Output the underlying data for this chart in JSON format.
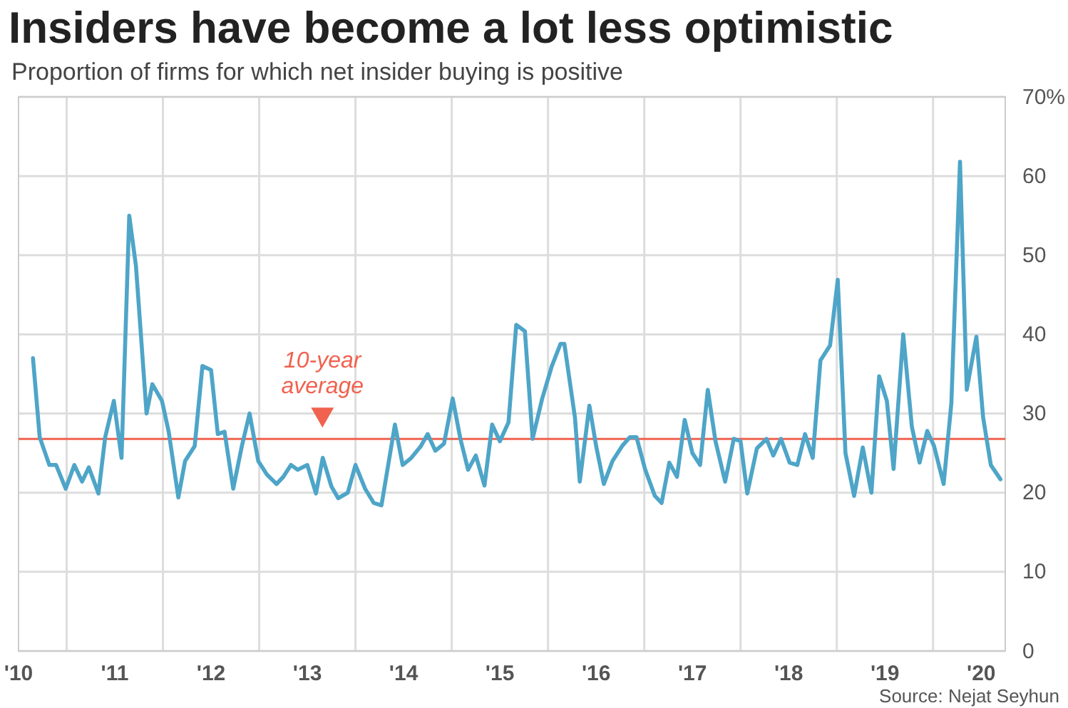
{
  "chart_data": {
    "type": "line",
    "title": "Insiders have become a lot less optimistic",
    "subtitle": "Proportion of firms for which net insider buying is positive",
    "x": [
      2010.15,
      2010.22,
      2010.32,
      2010.39,
      2010.49,
      2010.58,
      2010.66,
      2010.73,
      2010.83,
      2010.9,
      2010.99,
      2011.07,
      2011.15,
      2011.22,
      2011.33,
      2011.39,
      2011.49,
      2011.56,
      2011.66,
      2011.73,
      2011.83,
      2011.91,
      2012.0,
      2012.07,
      2012.14,
      2012.23,
      2012.32,
      2012.4,
      2012.49,
      2012.58,
      2012.68,
      2012.75,
      2012.83,
      2012.9,
      2013.0,
      2013.09,
      2013.16,
      2013.25,
      2013.32,
      2013.42,
      2013.5,
      2013.6,
      2013.69,
      2013.77,
      2013.91,
      2013.99,
      2014.08,
      2014.18,
      2014.25,
      2014.33,
      2014.42,
      2014.51,
      2014.59,
      2014.67,
      2014.75,
      2014.84,
      2014.92,
      2015.0,
      2015.09,
      2015.17,
      2015.26,
      2015.34,
      2015.44,
      2015.54,
      2015.63,
      2015.67,
      2015.78,
      2015.83,
      2015.93,
      2016.0,
      2016.08,
      2016.17,
      2016.27,
      2016.35,
      2016.42,
      2016.51,
      2016.61,
      2016.68,
      2016.76,
      2016.84,
      2016.92,
      2017.0,
      2017.08,
      2017.16,
      2017.24,
      2017.34,
      2017.43,
      2017.5,
      2017.57,
      2017.67,
      2017.77,
      2017.84,
      2017.92,
      2018.01,
      2018.09,
      2018.17,
      2018.25,
      2018.33,
      2018.43,
      2018.51,
      2018.59,
      2018.68,
      2018.77,
      2018.86,
      2018.94,
      2019.02,
      2019.09,
      2019.19,
      2019.28,
      2019.36,
      2019.44,
      2019.51,
      2019.61,
      2019.69,
      2019.78,
      2019.85,
      2019.95,
      2020.02,
      2020.1,
      2020.2
    ],
    "series": [
      {
        "color": "#4ea5c8",
        "values": [
          37,
          27,
          23.5,
          23.5,
          20.5,
          23.5,
          21.4,
          23.2,
          19.9,
          27,
          31.6,
          24.4,
          55,
          48.6,
          30,
          33.7,
          31.6,
          27.7,
          19.4,
          24,
          25.9,
          36,
          35.5,
          27.4,
          27.7,
          20.5,
          25.9,
          30,
          24,
          22.3,
          21.1,
          22,
          23.5,
          22.9,
          23.5,
          19.9,
          24.4,
          20.8,
          19.3,
          20,
          23.5,
          20.5,
          18.7,
          18.4,
          28.6,
          23.5,
          24.4,
          25.9,
          27.4,
          25.3,
          26.2,
          31.9,
          26.8,
          22.9,
          24.7,
          20.9,
          28.6,
          26.5,
          28.9,
          41.2,
          40.4,
          26.8,
          31.9,
          36,
          38.8,
          38.8,
          29.5,
          21.4,
          31,
          25.9,
          21.1,
          24,
          25.9,
          27,
          27,
          22.9,
          19.6,
          18.7,
          23.8,
          22,
          29.2,
          25,
          23.5,
          33,
          26.5,
          21.4,
          26.8,
          26.5,
          19.9,
          25.6,
          26.8,
          24.7,
          26.8,
          23.8,
          23.5,
          27.4,
          24.4,
          36.7,
          38.6,
          46.9,
          25,
          19.6,
          25.7,
          20,
          34.7,
          31.6,
          23,
          40,
          28.3,
          23.8,
          27.8,
          25.9,
          21.1,
          31.3,
          61.8,
          33,
          39.7,
          29.5,
          23.5,
          21.7
        ]
      }
    ],
    "xlim": [
      2010,
      2020.25
    ],
    "xticks": [
      {
        "value": 2010,
        "label": "'10"
      },
      {
        "value": 2010.5,
        "label": null
      },
      {
        "value": 2011,
        "label": "'11"
      },
      {
        "value": 2011.5,
        "label": null
      },
      {
        "value": 2012,
        "label": "'12"
      },
      {
        "value": 2012.5,
        "label": null
      },
      {
        "value": 2013,
        "label": "'13"
      },
      {
        "value": 2013.5,
        "label": null
      },
      {
        "value": 2014,
        "label": "'14"
      },
      {
        "value": 2014.5,
        "label": null
      },
      {
        "value": 2015,
        "label": "'15"
      },
      {
        "value": 2015.5,
        "label": null
      },
      {
        "value": 2016,
        "label": "'16"
      },
      {
        "value": 2016.5,
        "label": null
      },
      {
        "value": 2017,
        "label": "'17"
      },
      {
        "value": 2017.5,
        "label": null
      },
      {
        "value": 2018,
        "label": "'18"
      },
      {
        "value": 2018.5,
        "label": null
      },
      {
        "value": 2019,
        "label": "'19"
      },
      {
        "value": 2019.5,
        "label": null
      },
      {
        "value": 2020,
        "label": "'20"
      }
    ],
    "ylim": [
      0,
      70
    ],
    "yticks": [
      0,
      10,
      20,
      30,
      40,
      50,
      60,
      {
        "value": 70,
        "label": "70%"
      }
    ],
    "grid": true,
    "ref_lines": [
      {
        "axis": "y",
        "value": 26.8,
        "label": "10-year average",
        "color": "#f0624f"
      }
    ],
    "annotations": [
      "Source: Nejat Seyhun"
    ]
  }
}
